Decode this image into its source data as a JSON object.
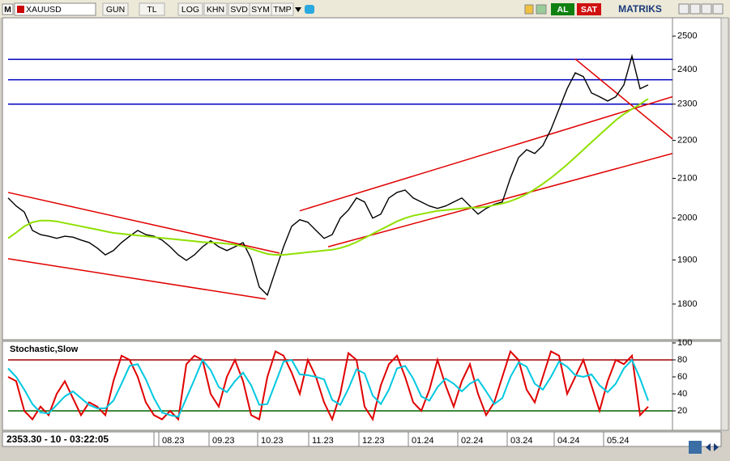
{
  "toolbar": {
    "logo": "M",
    "symbol": "XAUUSD",
    "buttons": [
      "GUN",
      "TL",
      "LOG",
      "KHN",
      "SVD",
      "SYM",
      "TMP"
    ],
    "buy": "AL",
    "sell": "SAT",
    "brand": "MATRIKS"
  },
  "status": "2353.30 - 10 - 03:22:05",
  "chart_data": [
    {
      "type": "line",
      "log": true,
      "ylim": [
        1723,
        2557
      ],
      "yticks": [
        1800,
        1900,
        2000,
        2100,
        2200,
        2300,
        2400,
        2500
      ],
      "xlim": [
        0,
        82
      ],
      "x": [
        0,
        1,
        2,
        3,
        4,
        5,
        6,
        7,
        8,
        9,
        10,
        11,
        12,
        13,
        14,
        15,
        16,
        17,
        18,
        19,
        20,
        21,
        22,
        23,
        24,
        25,
        26,
        27,
        28,
        29,
        30,
        31,
        32,
        33,
        34,
        35,
        36,
        37,
        38,
        39,
        40,
        41,
        42,
        43,
        44,
        45,
        46,
        47,
        48,
        49,
        50,
        51,
        52,
        53,
        54,
        55,
        56,
        57,
        58,
        59,
        60,
        61,
        62,
        63,
        64,
        65,
        66,
        67,
        68,
        69,
        70,
        71,
        72,
        73,
        74,
        75,
        76,
        77,
        78,
        79
      ],
      "series": [
        {
          "color": "#000000",
          "values": [
            2050,
            2030,
            2015,
            1970,
            1960,
            1956,
            1951,
            1956,
            1954,
            1947,
            1941,
            1928,
            1912,
            1922,
            1941,
            1956,
            1970,
            1960,
            1956,
            1947,
            1931,
            1912,
            1899,
            1912,
            1931,
            1945,
            1931,
            1922,
            1931,
            1941,
            1903,
            1838,
            1820,
            1875,
            1931,
            1980,
            1996,
            1990,
            1970,
            1951,
            1960,
            2000,
            2020,
            2050,
            2040,
            2000,
            2010,
            2050,
            2064,
            2070,
            2050,
            2040,
            2030,
            2024,
            2030,
            2040,
            2050,
            2030,
            2010,
            2024,
            2034,
            2040,
            2101,
            2154,
            2175,
            2165,
            2186,
            2230,
            2286,
            2344,
            2390,
            2379,
            2332,
            2321,
            2309,
            2321,
            2355,
            2440,
            2344,
            2355
          ]
        },
        {
          "color": "#8fe000",
          "values": [
            1951,
            1965,
            1980,
            1990,
            1994,
            1994,
            1992,
            1988,
            1984,
            1980,
            1976,
            1972,
            1968,
            1964,
            1962,
            1960,
            1958,
            1956,
            1954,
            1952,
            1950,
            1948,
            1946,
            1944,
            1942,
            1941,
            1940,
            1938,
            1936,
            1932,
            1926,
            1920,
            1914,
            1912,
            1912,
            1914,
            1916,
            1918,
            1920,
            1922,
            1924,
            1928,
            1934,
            1942,
            1952,
            1962,
            1972,
            1982,
            1992,
            2000,
            2006,
            2010,
            2014,
            2018,
            2020,
            2022,
            2024,
            2026,
            2026,
            2028,
            2032,
            2036,
            2042,
            2050,
            2060,
            2072,
            2086,
            2101,
            2118,
            2136,
            2155,
            2175,
            2195,
            2215,
            2235,
            2255,
            2272,
            2286,
            2300,
            2315
          ]
        }
      ],
      "hlines": [
        2430,
        2370,
        2300
      ],
      "hline_colors": [
        "#0000c0",
        "#0000c0",
        "#0000c0"
      ],
      "trendline_color": "#e00000",
      "trendlines": [
        {
          "x": [
            0,
            33.5
          ],
          "y": [
            2064,
            1916
          ]
        },
        {
          "x": [
            0,
            31.8
          ],
          "y": [
            1903,
            1811
          ]
        },
        {
          "x": [
            36,
            82
          ],
          "y": [
            2018,
            2321
          ]
        },
        {
          "x": [
            39.5,
            82
          ],
          "y": [
            1931,
            2165
          ]
        },
        {
          "x": [
            70,
            82
          ],
          "y": [
            2431,
            2204
          ]
        }
      ]
    },
    {
      "type": "line",
      "title": "Stochastic,Slow",
      "ylim": [
        0,
        100
      ],
      "yticks": [
        20,
        40,
        60,
        80,
        100
      ],
      "xlim": [
        0,
        82
      ],
      "series": [
        {
          "color": "#e00000",
          "values": [
            60,
            55,
            20,
            10,
            25,
            15,
            40,
            55,
            35,
            15,
            30,
            25,
            15,
            55,
            85,
            80,
            60,
            30,
            15,
            10,
            20,
            10,
            75,
            85,
            80,
            40,
            25,
            60,
            80,
            55,
            15,
            10,
            60,
            90,
            85,
            65,
            40,
            80,
            60,
            30,
            10,
            40,
            88,
            80,
            25,
            10,
            50,
            75,
            85,
            60,
            30,
            20,
            45,
            80,
            50,
            25,
            55,
            75,
            40,
            15,
            30,
            60,
            90,
            80,
            45,
            30,
            60,
            90,
            85,
            40,
            60,
            80,
            50,
            20,
            55,
            80,
            75,
            85,
            15,
            25
          ]
        },
        {
          "color": "#00c8e0",
          "values": [
            70,
            60,
            45,
            28,
            18,
            17,
            27,
            37,
            43,
            35,
            27,
            23,
            23,
            32,
            52,
            73,
            75,
            57,
            35,
            18,
            15,
            13,
            35,
            57,
            80,
            68,
            48,
            42,
            55,
            65,
            50,
            27,
            28,
            53,
            78,
            80,
            63,
            62,
            60,
            57,
            33,
            27,
            46,
            69,
            64,
            38,
            28,
            45,
            70,
            73,
            58,
            37,
            32,
            48,
            58,
            52,
            43,
            52,
            57,
            43,
            28,
            35,
            60,
            77,
            72,
            52,
            45,
            60,
            78,
            72,
            62,
            60,
            63,
            50,
            42,
            52,
            70,
            80,
            58,
            32
          ]
        }
      ],
      "hlines": [
        80,
        20
      ],
      "hline_colors": [
        "#a00000",
        "#006400"
      ],
      "xticks": [
        {
          "value": 18.6,
          "label": "08.23"
        },
        {
          "value": 24.8,
          "label": "09.23"
        },
        {
          "value": 30.8,
          "label": "10.23"
        },
        {
          "value": 37.1,
          "label": "11.23"
        },
        {
          "value": 43.3,
          "label": "12.23"
        },
        {
          "value": 49.4,
          "label": "01.24"
        },
        {
          "value": 55.5,
          "label": "02.24"
        },
        {
          "value": 61.6,
          "label": "03.24"
        },
        {
          "value": 67.4,
          "label": "04.24"
        },
        {
          "value": 73.5,
          "label": "05.24"
        }
      ]
    }
  ]
}
